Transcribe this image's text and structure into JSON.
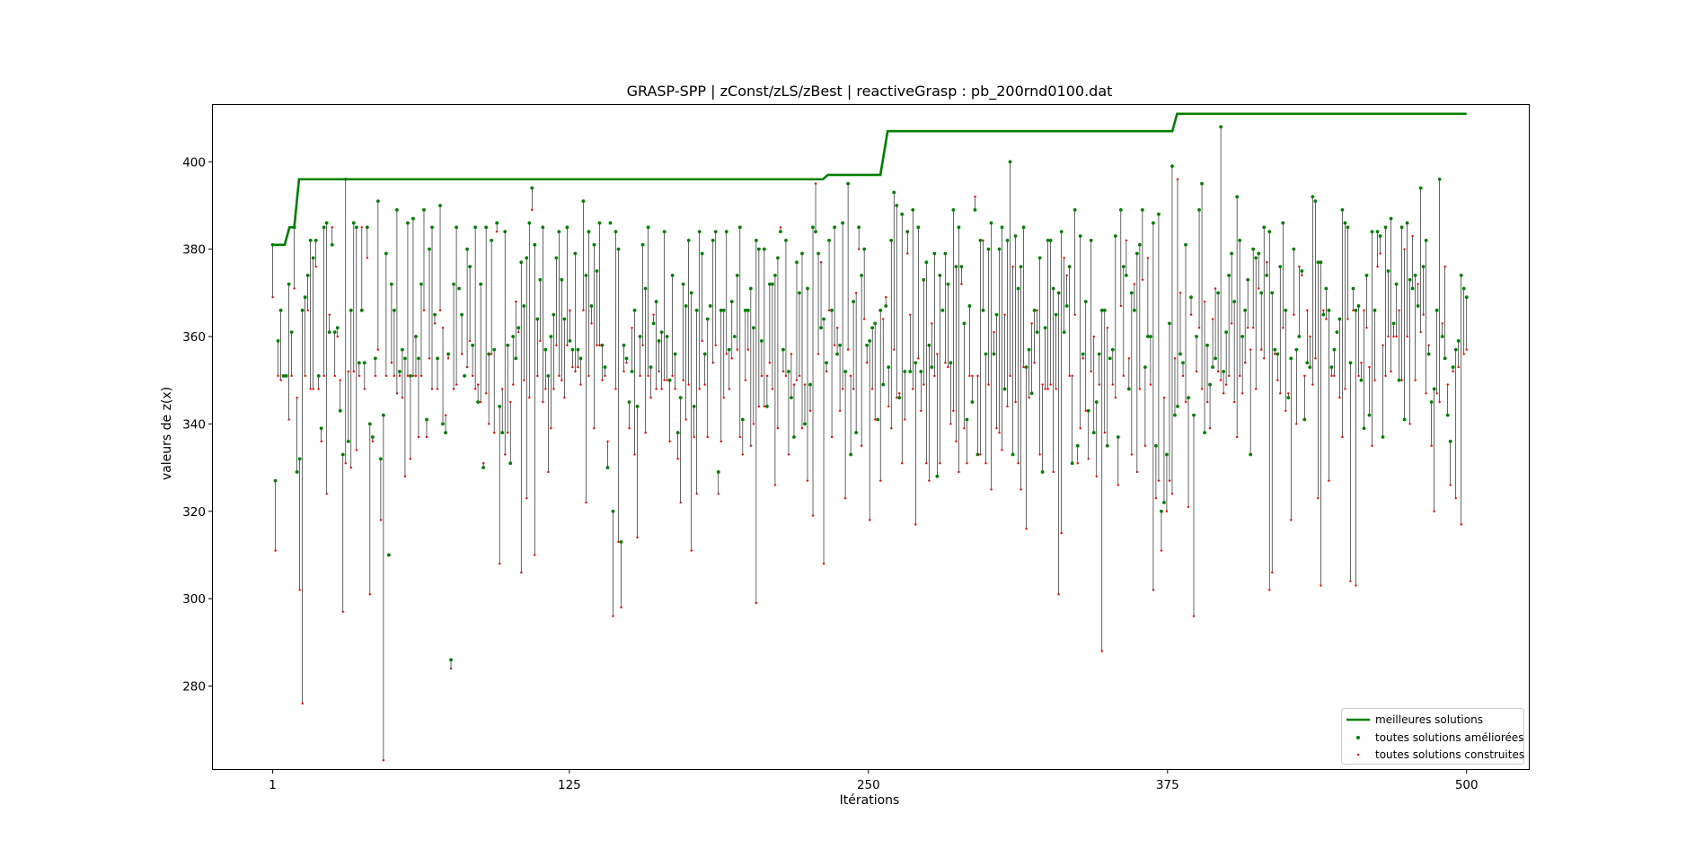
{
  "chart_data": {
    "type": "line",
    "title": "GRASP-SPP | zConst/zLS/zBest | reactiveGrasp : pb_200rnd0100.dat",
    "xlabel": "Itérations",
    "ylabel": "valeurs de z(x)",
    "xlim": [
      -24,
      526
    ],
    "ylim": [
      261,
      413
    ],
    "x_ticks": [
      1,
      125,
      250,
      375,
      500
    ],
    "y_ticks": [
      280,
      300,
      320,
      340,
      360,
      380,
      400
    ],
    "grid": false,
    "legend_position": "bottom-right",
    "legend": [
      "meilleures solutions",
      "toutes solutions améliorées",
      "toutes solutions construites"
    ],
    "colors": {
      "best": "#008000",
      "improved": "#008000",
      "constructed": "#ff0000",
      "segment": "#000000"
    },
    "best_solutions": {
      "name": "meilleures solutions",
      "x": [
        1,
        6,
        8,
        10,
        12,
        231,
        233,
        255,
        258,
        262,
        377,
        379,
        500
      ],
      "y": [
        381,
        381,
        385,
        385,
        396,
        396,
        397,
        397,
        407,
        407,
        407,
        411,
        411
      ]
    },
    "iterations": {
      "x_start": 1,
      "x_end": 500,
      "improved_name": "toutes solutions améliorées",
      "constructed_name": "toutes solutions construites",
      "improved": [
        381,
        327,
        359,
        366,
        351,
        351,
        372,
        361,
        385,
        329,
        332,
        366,
        369,
        374,
        382,
        378,
        382,
        351,
        339,
        385,
        386,
        361,
        381,
        361,
        362,
        343,
        333,
        396,
        336,
        366,
        386,
        385,
        354,
        366,
        354,
        385,
        340,
        337,
        355,
        391,
        332,
        342,
        379,
        310,
        372,
        366,
        389,
        352,
        357,
        355,
        386,
        351,
        387,
        360,
        355,
        372,
        389,
        341,
        380,
        385,
        365,
        355,
        390,
        340,
        338,
        356,
        286,
        372,
        385,
        371,
        365,
        351,
        380,
        376,
        358,
        385,
        345,
        372,
        330,
        385,
        356,
        382,
        357,
        386,
        344,
        338,
        384,
        358,
        331,
        360,
        355,
        362,
        377,
        367,
        378,
        386,
        394,
        381,
        364,
        373,
        385,
        357,
        351,
        360,
        365,
        378,
        384,
        373,
        364,
        385,
        359,
        357,
        379,
        357,
        355,
        391,
        374,
        384,
        367,
        381,
        375,
        386,
        358,
        353,
        330,
        386,
        320,
        384,
        380,
        313,
        358,
        355,
        345,
        352,
        366,
        344,
        360,
        381,
        371,
        385,
        353,
        363,
        368,
        359,
        361,
        384,
        360,
        350,
        374,
        356,
        338,
        346,
        372,
        367,
        382,
        370,
        344,
        366,
        384,
        379,
        356,
        364,
        367,
        382,
        384,
        329,
        366,
        366,
        384,
        357,
        368,
        360,
        374,
        385,
        341,
        366,
        366,
        371,
        362,
        382,
        380,
        359,
        380,
        344,
        372,
        372,
        374,
        378,
        384,
        357,
        382,
        352,
        346,
        337,
        377,
        370,
        379,
        340,
        371,
        349,
        385,
        384,
        379,
        362,
        364,
        354,
        382,
        366,
        385,
        356,
        358,
        386,
        352,
        395,
        333,
        368,
        338,
        385,
        374,
        380,
        358,
        359,
        362,
        363,
        341,
        366,
        349,
        367,
        353,
        382,
        393,
        390,
        346,
        388,
        352,
        384,
        352,
        389,
        354,
        385,
        352,
        373,
        377,
        358,
        353,
        379,
        328,
        374,
        366,
        379,
        372,
        354,
        389,
        376,
        385,
        376,
        363,
        341,
        367,
        345,
        389,
        333,
        382,
        366,
        356,
        380,
        386,
        356,
        365,
        380,
        385,
        348,
        382,
        400,
        333,
        383,
        371,
        376,
        385,
        353,
        357,
        347,
        366,
        361,
        378,
        329,
        362,
        382,
        382,
        371,
        365,
        370,
        384,
        361,
        367,
        376,
        331,
        389,
        335,
        383,
        356,
        368,
        343,
        382,
        338,
        345,
        356,
        366,
        366,
        335,
        355,
        357,
        383,
        337,
        389,
        376,
        374,
        348,
        370,
        366,
        379,
        381,
        389,
        353,
        360,
        360,
        386,
        335,
        388,
        320,
        322,
        333,
        363,
        399,
        342,
        344,
        356,
        354,
        381,
        346,
        369,
        342,
        360,
        389,
        395,
        338,
        358,
        349,
        353,
        355,
        370,
        408,
        352,
        361,
        374,
        379,
        368,
        392,
        382,
        360,
        366,
        373,
        333,
        380,
        378,
        379,
        370,
        385,
        374,
        384,
        370,
        357,
        356,
        376,
        386,
        366,
        346,
        355,
        380,
        357,
        360,
        375,
        341,
        354,
        353,
        392,
        391,
        377,
        377,
        365,
        371,
        366,
        353,
        357,
        361,
        364,
        389,
        386,
        385,
        354,
        371,
        366,
        367,
        350,
        339,
        374,
        342,
        384,
        366,
        384,
        383,
        337,
        385,
        375,
        387,
        363,
        372,
        350,
        385,
        341,
        386,
        373,
        371,
        374,
        367,
        394,
        376,
        382,
        356,
        345,
        348,
        366,
        396,
        360,
        355,
        342,
        336,
        353,
        357,
        359,
        374,
        371,
        369
      ],
      "constructed": [
        369,
        311,
        351,
        350,
        351,
        351,
        341,
        351,
        371,
        346,
        302,
        276,
        351,
        366,
        348,
        348,
        376,
        348,
        336,
        351,
        324,
        365,
        385,
        351,
        360,
        350,
        297,
        331,
        352,
        330,
        352,
        334,
        351,
        385,
        348,
        378,
        301,
        336,
        351,
        357,
        318,
        263,
        351,
        310,
        354,
        351,
        347,
        351,
        346,
        328,
        351,
        332,
        351,
        351,
        337,
        351,
        366,
        337,
        355,
        348,
        363,
        348,
        366,
        362,
        342,
        355,
        284,
        348,
        349,
        371,
        356,
        351,
        353,
        359,
        351,
        348,
        349,
        345,
        331,
        347,
        340,
        356,
        338,
        384,
        308,
        348,
        333,
        338,
        345,
        349,
        368,
        361,
        306,
        350,
        323,
        346,
        389,
        310,
        351,
        359,
        345,
        348,
        329,
        339,
        348,
        358,
        351,
        350,
        346,
        358,
        366,
        353,
        352,
        353,
        349,
        366,
        322,
        351,
        363,
        339,
        358,
        358,
        350,
        351,
        336,
        386,
        296,
        348,
        313,
        298,
        352,
        354,
        339,
        362,
        333,
        314,
        351,
        358,
        338,
        351,
        346,
        365,
        348,
        352,
        348,
        350,
        350,
        336,
        351,
        348,
        332,
        322,
        350,
        341,
        349,
        311,
        337,
        324,
        348,
        359,
        349,
        337,
        367,
        354,
        358,
        324,
        336,
        346,
        356,
        348,
        355,
        360,
        357,
        337,
        333,
        350,
        357,
        335,
        340,
        299,
        344,
        351,
        344,
        351,
        354,
        348,
        326,
        339,
        385,
        352,
        351,
        333,
        356,
        349,
        350,
        351,
        339,
        349,
        327,
        343,
        319,
        395,
        356,
        377,
        308,
        352,
        366,
        337,
        358,
        362,
        343,
        348,
        323,
        357,
        351,
        348,
        370,
        380,
        335,
        364,
        354,
        318,
        348,
        341,
        341,
        327,
        364,
        369,
        344,
        339,
        357,
        346,
        347,
        331,
        341,
        379,
        365,
        348,
        317,
        355,
        343,
        349,
        331,
        327,
        363,
        351,
        356,
        331,
        366,
        354,
        353,
        340,
        343,
        336,
        329,
        372,
        339,
        331,
        351,
        351,
        392,
        351,
        333,
        382,
        331,
        349,
        325,
        361,
        339,
        338,
        334,
        365,
        344,
        351,
        376,
        345,
        331,
        325,
        353,
        316,
        346,
        363,
        354,
        366,
        333,
        349,
        348,
        348,
        349,
        329,
        348,
        301,
        315,
        378,
        374,
        351,
        351,
        365,
        331,
        339,
        355,
        343,
        332,
        352,
        360,
        328,
        349,
        288,
        338,
        362,
        355,
        349,
        346,
        326,
        367,
        351,
        382,
        355,
        333,
        372,
        329,
        348,
        373,
        335,
        378,
        349,
        302,
        323,
        327,
        311,
        346,
        320,
        327,
        324,
        355,
        396,
        370,
        351,
        345,
        321,
        365,
        296,
        352,
        362,
        348,
        368,
        345,
        339,
        364,
        371,
        352,
        350,
        347,
        349,
        351,
        363,
        345,
        337,
        351,
        347,
        354,
        362,
        357,
        362,
        348,
        371,
        357,
        355,
        377,
        302,
        306,
        356,
        350,
        347,
        362,
        343,
        347,
        318,
        365,
        340,
        376,
        374,
        351,
        366,
        360,
        349,
        355,
        323,
        303,
        366,
        364,
        327,
        351,
        351,
        361,
        346,
        337,
        348,
        364,
        304,
        366,
        303,
        351,
        354,
        366,
        362,
        353,
        335,
        350,
        376,
        379,
        358,
        351,
        360,
        352,
        360,
        360,
        366,
        350,
        380,
        360,
        340,
        383,
        350,
        372,
        361,
        365,
        347,
        358,
        335,
        320,
        347,
        345,
        363,
        376,
        349,
        326,
        352,
        323,
        353,
        317,
        356,
        357,
        360,
        329,
        351,
        311,
        351,
        320,
        380,
        341,
        362,
        349,
        360
      ]
    }
  }
}
